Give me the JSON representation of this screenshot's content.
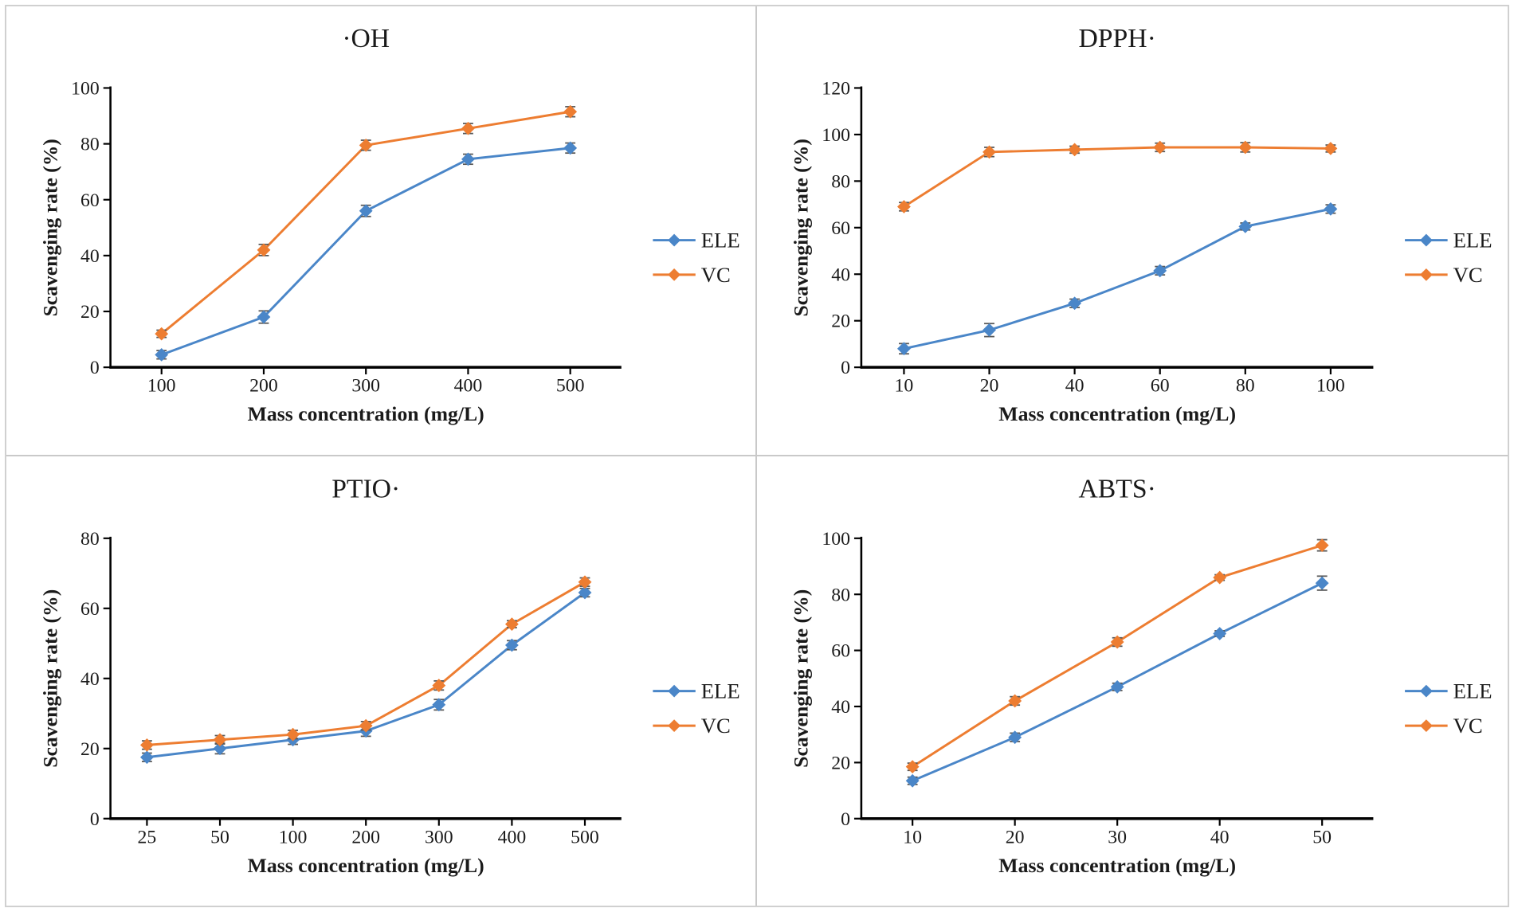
{
  "page": {
    "background": "#ffffff",
    "frame_border_color": "#d0d0d0",
    "divider_color": "#c9c9c9"
  },
  "colors": {
    "ele": "#4a86c8",
    "vc": "#ed7d31",
    "error_bar": "#595959",
    "axis": "#000000",
    "text": "#1a1a1a"
  },
  "legend": {
    "items": [
      {
        "label": "ELE",
        "color_key": "ele"
      },
      {
        "label": "VC",
        "color_key": "vc"
      }
    ]
  },
  "chart_data": [
    {
      "id": "oh",
      "type": "line",
      "title": "·OH",
      "xlabel": "Mass concentration (mg/L)",
      "ylabel": "Scavenging rate (%)",
      "categories": [
        "100",
        "200",
        "300",
        "400",
        "500"
      ],
      "ylim": [
        0,
        100
      ],
      "ytick_step": 20,
      "grid": false,
      "legend_position": "right",
      "series": [
        {
          "name": "ELE",
          "color_key": "ele",
          "values": [
            4.5,
            18,
            56,
            74.5,
            78.5
          ],
          "errors": [
            1.5,
            2.2,
            2.0,
            1.8,
            1.8
          ]
        },
        {
          "name": "VC",
          "color_key": "vc",
          "values": [
            12,
            42,
            79.5,
            85.5,
            91.5
          ],
          "errors": [
            1.3,
            2.0,
            1.8,
            1.8,
            1.8
          ]
        }
      ]
    },
    {
      "id": "dpph",
      "type": "line",
      "title": "DPPH·",
      "xlabel": "Mass concentration (mg/L)",
      "ylabel": "Scavenging rate (%)",
      "categories": [
        "10",
        "20",
        "40",
        "60",
        "80",
        "100"
      ],
      "ylim": [
        0,
        120
      ],
      "ytick_step": 20,
      "grid": false,
      "legend_position": "right",
      "series": [
        {
          "name": "ELE",
          "color_key": "ele",
          "values": [
            8,
            16,
            27.5,
            41.5,
            60.5,
            68
          ],
          "errors": [
            2.2,
            2.8,
            1.8,
            1.8,
            1.5,
            1.8
          ]
        },
        {
          "name": "VC",
          "color_key": "vc",
          "values": [
            69,
            92.5,
            93.5,
            94.5,
            94.5,
            94
          ],
          "errors": [
            1.8,
            2.0,
            1.5,
            1.8,
            2.0,
            1.5
          ]
        }
      ]
    },
    {
      "id": "ptio",
      "type": "line",
      "title": "PTIO·",
      "xlabel": "Mass concentration (mg/L)",
      "ylabel": "Scavenging rate (%)",
      "categories": [
        "25",
        "50",
        "100",
        "200",
        "300",
        "400",
        "500"
      ],
      "ylim": [
        0,
        80
      ],
      "ytick_step": 20,
      "grid": false,
      "legend_position": "right",
      "series": [
        {
          "name": "ELE",
          "color_key": "ele",
          "values": [
            17.5,
            20,
            22.5,
            25,
            32.5,
            49.5,
            64.5
          ],
          "errors": [
            1.2,
            1.5,
            1.3,
            1.5,
            1.5,
            1.3,
            1.2
          ]
        },
        {
          "name": "VC",
          "color_key": "vc",
          "values": [
            21,
            22.5,
            24,
            26.5,
            38,
            55.5,
            67.5
          ],
          "errors": [
            1.2,
            1.2,
            1.2,
            1.2,
            1.3,
            1.0,
            1.2
          ]
        }
      ]
    },
    {
      "id": "abts",
      "type": "line",
      "title": "ABTS·",
      "xlabel": "Mass concentration (mg/L)",
      "ylabel": "Scavenging rate (%)",
      "categories": [
        "10",
        "20",
        "30",
        "40",
        "50"
      ],
      "ylim": [
        0,
        100
      ],
      "ytick_step": 20,
      "grid": false,
      "legend_position": "right",
      "series": [
        {
          "name": "ELE",
          "color_key": "ele",
          "values": [
            13.5,
            29,
            47,
            66,
            84
          ],
          "errors": [
            1.3,
            1.5,
            1.3,
            1.0,
            2.5
          ]
        },
        {
          "name": "VC",
          "color_key": "vc",
          "values": [
            18.5,
            42,
            63,
            86,
            97.5
          ],
          "errors": [
            1.3,
            1.5,
            1.5,
            1.0,
            2.0
          ]
        }
      ]
    }
  ]
}
